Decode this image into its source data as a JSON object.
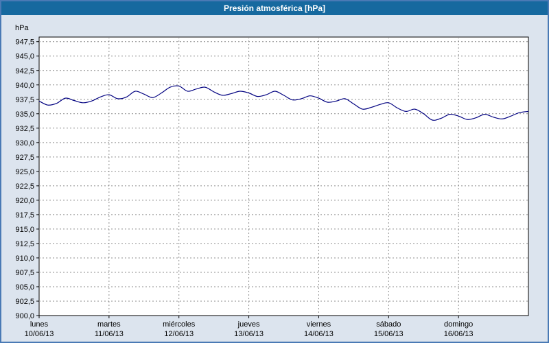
{
  "window": {
    "title": "Presión atmosférica [hPa]"
  },
  "colors": {
    "title_bg": "#16699f",
    "title_text": "#ffffff",
    "outer_border": "#4a7ab5",
    "background": "#dce4ee",
    "plot_bg": "#ffffff",
    "grid": "#8c8c8c",
    "axis": "#000000",
    "line": "#000080"
  },
  "chart_data": {
    "type": "line",
    "title": "Presión atmosférica [hPa]",
    "ylabel": "hPa",
    "xlabel": "",
    "ylim": [
      900.0,
      948.3
    ],
    "grid": true,
    "legend_position": "none",
    "yticks": [
      {
        "v": 947.5,
        "label": "947,5"
      },
      {
        "v": 945.0,
        "label": "945,0"
      },
      {
        "v": 942.5,
        "label": "942,5"
      },
      {
        "v": 940.0,
        "label": "940,0"
      },
      {
        "v": 937.5,
        "label": "937,5"
      },
      {
        "v": 935.0,
        "label": "935,0"
      },
      {
        "v": 932.5,
        "label": "932,5"
      },
      {
        "v": 930.0,
        "label": "930,0"
      },
      {
        "v": 927.5,
        "label": "927,5"
      },
      {
        "v": 925.0,
        "label": "925,0"
      },
      {
        "v": 922.5,
        "label": "922,5"
      },
      {
        "v": 920.0,
        "label": "920,0"
      },
      {
        "v": 917.5,
        "label": "917,5"
      },
      {
        "v": 915.0,
        "label": "915,0"
      },
      {
        "v": 912.5,
        "label": "912,5"
      },
      {
        "v": 910.0,
        "label": "910,0"
      },
      {
        "v": 907.5,
        "label": "907,5"
      },
      {
        "v": 905.0,
        "label": "905,0"
      },
      {
        "v": 902.5,
        "label": "902,5"
      },
      {
        "v": 900.0,
        "label": "900,0"
      }
    ],
    "x_days": [
      {
        "name": "lunes",
        "date": "10/06/13"
      },
      {
        "name": "martes",
        "date": "11/06/13"
      },
      {
        "name": "miércoles",
        "date": "12/06/13"
      },
      {
        "name": "jueves",
        "date": "13/06/13"
      },
      {
        "name": "viernes",
        "date": "14/06/13"
      },
      {
        "name": "sábado",
        "date": "15/06/13"
      },
      {
        "name": "domingo",
        "date": "16/06/13"
      }
    ],
    "series_name": "Presión atmosférica",
    "sample_interval_hours": 3,
    "values": [
      937.2,
      936.5,
      936.8,
      937.7,
      937.3,
      936.9,
      937.2,
      937.9,
      938.3,
      937.6,
      937.9,
      938.9,
      938.4,
      937.8,
      938.6,
      939.6,
      939.8,
      938.9,
      939.3,
      939.6,
      938.8,
      938.2,
      938.5,
      938.9,
      938.6,
      938.0,
      938.3,
      938.9,
      938.2,
      937.4,
      937.6,
      938.1,
      937.7,
      937.0,
      937.2,
      937.6,
      936.7,
      935.8,
      936.1,
      936.6,
      936.9,
      936.0,
      935.4,
      935.8,
      935.0,
      933.9,
      934.2,
      934.9,
      934.6,
      934.0,
      934.3,
      934.9,
      934.4,
      934.1,
      934.6,
      935.2,
      935.4
    ]
  }
}
